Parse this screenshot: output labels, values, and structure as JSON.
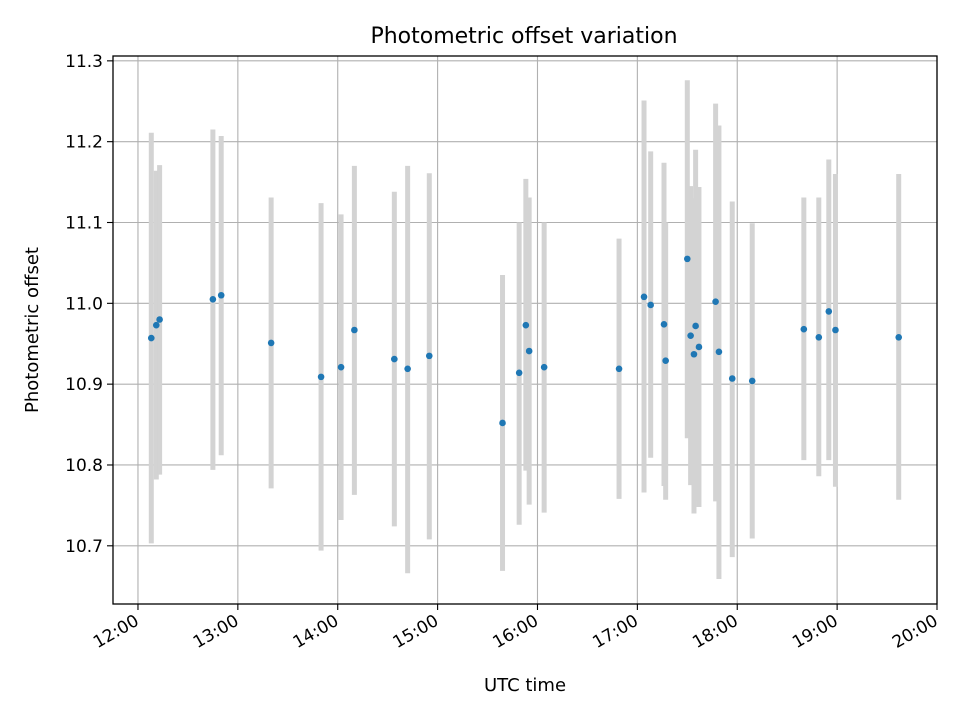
{
  "chart_data": {
    "type": "scatter",
    "title": "Photometric offset variation",
    "xlabel": "UTC time",
    "ylabel": "Photometric offset",
    "x_ticks": [
      "12:00",
      "13:00",
      "14:00",
      "15:00",
      "16:00",
      "17:00",
      "18:00",
      "19:00",
      "20:00"
    ],
    "y_ticks": [
      "10.7",
      "10.8",
      "10.9",
      "11.0",
      "11.1",
      "11.2",
      "11.3"
    ],
    "xlim": [
      "11:45",
      "20:00"
    ],
    "ylim": [
      10.628,
      11.306
    ],
    "grid": true,
    "colors": {
      "marker": "#1f77b4",
      "errorbar": "#d3d3d3",
      "grid": "#b0b0b0"
    },
    "points": [
      {
        "x": "12:08",
        "y": 10.957,
        "err_low": 10.703,
        "err_high": 11.211
      },
      {
        "x": "12:11",
        "y": 10.973,
        "err_low": 10.782,
        "err_high": 11.164
      },
      {
        "x": "12:13",
        "y": 10.98,
        "err_low": 10.788,
        "err_high": 11.171
      },
      {
        "x": "12:45",
        "y": 11.005,
        "err_low": 10.794,
        "err_high": 11.215
      },
      {
        "x": "12:50",
        "y": 11.01,
        "err_low": 10.812,
        "err_high": 11.207
      },
      {
        "x": "13:20",
        "y": 10.951,
        "err_low": 10.771,
        "err_high": 11.131
      },
      {
        "x": "13:50",
        "y": 10.909,
        "err_low": 10.694,
        "err_high": 11.124
      },
      {
        "x": "14:02",
        "y": 10.921,
        "err_low": 10.732,
        "err_high": 11.11
      },
      {
        "x": "14:10",
        "y": 10.967,
        "err_low": 10.763,
        "err_high": 11.17
      },
      {
        "x": "14:34",
        "y": 10.931,
        "err_low": 10.724,
        "err_high": 11.138
      },
      {
        "x": "14:42",
        "y": 10.919,
        "err_low": 10.666,
        "err_high": 11.17
      },
      {
        "x": "14:55",
        "y": 10.935,
        "err_low": 10.708,
        "err_high": 11.161
      },
      {
        "x": "15:39",
        "y": 10.852,
        "err_low": 10.669,
        "err_high": 11.035
      },
      {
        "x": "15:49",
        "y": 10.914,
        "err_low": 10.726,
        "err_high": 11.1
      },
      {
        "x": "15:53",
        "y": 10.973,
        "err_low": 10.793,
        "err_high": 11.154
      },
      {
        "x": "15:55",
        "y": 10.941,
        "err_low": 10.751,
        "err_high": 11.131
      },
      {
        "x": "16:04",
        "y": 10.921,
        "err_low": 10.741,
        "err_high": 11.1
      },
      {
        "x": "16:49",
        "y": 10.919,
        "err_low": 10.758,
        "err_high": 11.08
      },
      {
        "x": "17:04",
        "y": 11.008,
        "err_low": 10.766,
        "err_high": 11.251
      },
      {
        "x": "17:08",
        "y": 10.998,
        "err_low": 10.809,
        "err_high": 11.188
      },
      {
        "x": "17:16",
        "y": 10.974,
        "err_low": 10.774,
        "err_high": 11.174
      },
      {
        "x": "17:17",
        "y": 10.929,
        "err_low": 10.757,
        "err_high": 11.1
      },
      {
        "x": "17:30",
        "y": 11.055,
        "err_low": 10.833,
        "err_high": 11.276
      },
      {
        "x": "17:32",
        "y": 10.96,
        "err_low": 10.775,
        "err_high": 11.145
      },
      {
        "x": "17:34",
        "y": 10.937,
        "err_low": 10.74,
        "err_high": 11.13
      },
      {
        "x": "17:35",
        "y": 10.972,
        "err_low": 10.755,
        "err_high": 11.19
      },
      {
        "x": "17:37",
        "y": 10.946,
        "err_low": 10.748,
        "err_high": 11.144
      },
      {
        "x": "17:47",
        "y": 11.002,
        "err_low": 10.755,
        "err_high": 11.247
      },
      {
        "x": "17:49",
        "y": 10.94,
        "err_low": 10.659,
        "err_high": 11.22
      },
      {
        "x": "17:57",
        "y": 10.907,
        "err_low": 10.686,
        "err_high": 11.126
      },
      {
        "x": "18:09",
        "y": 10.904,
        "err_low": 10.709,
        "err_high": 11.099
      },
      {
        "x": "18:40",
        "y": 10.968,
        "err_low": 10.806,
        "err_high": 11.131
      },
      {
        "x": "18:49",
        "y": 10.958,
        "err_low": 10.786,
        "err_high": 11.131
      },
      {
        "x": "18:55",
        "y": 10.99,
        "err_low": 10.806,
        "err_high": 11.178
      },
      {
        "x": "18:59",
        "y": 10.967,
        "err_low": 10.773,
        "err_high": 11.16
      },
      {
        "x": "19:37",
        "y": 10.958,
        "err_low": 10.757,
        "err_high": 11.16
      }
    ]
  }
}
